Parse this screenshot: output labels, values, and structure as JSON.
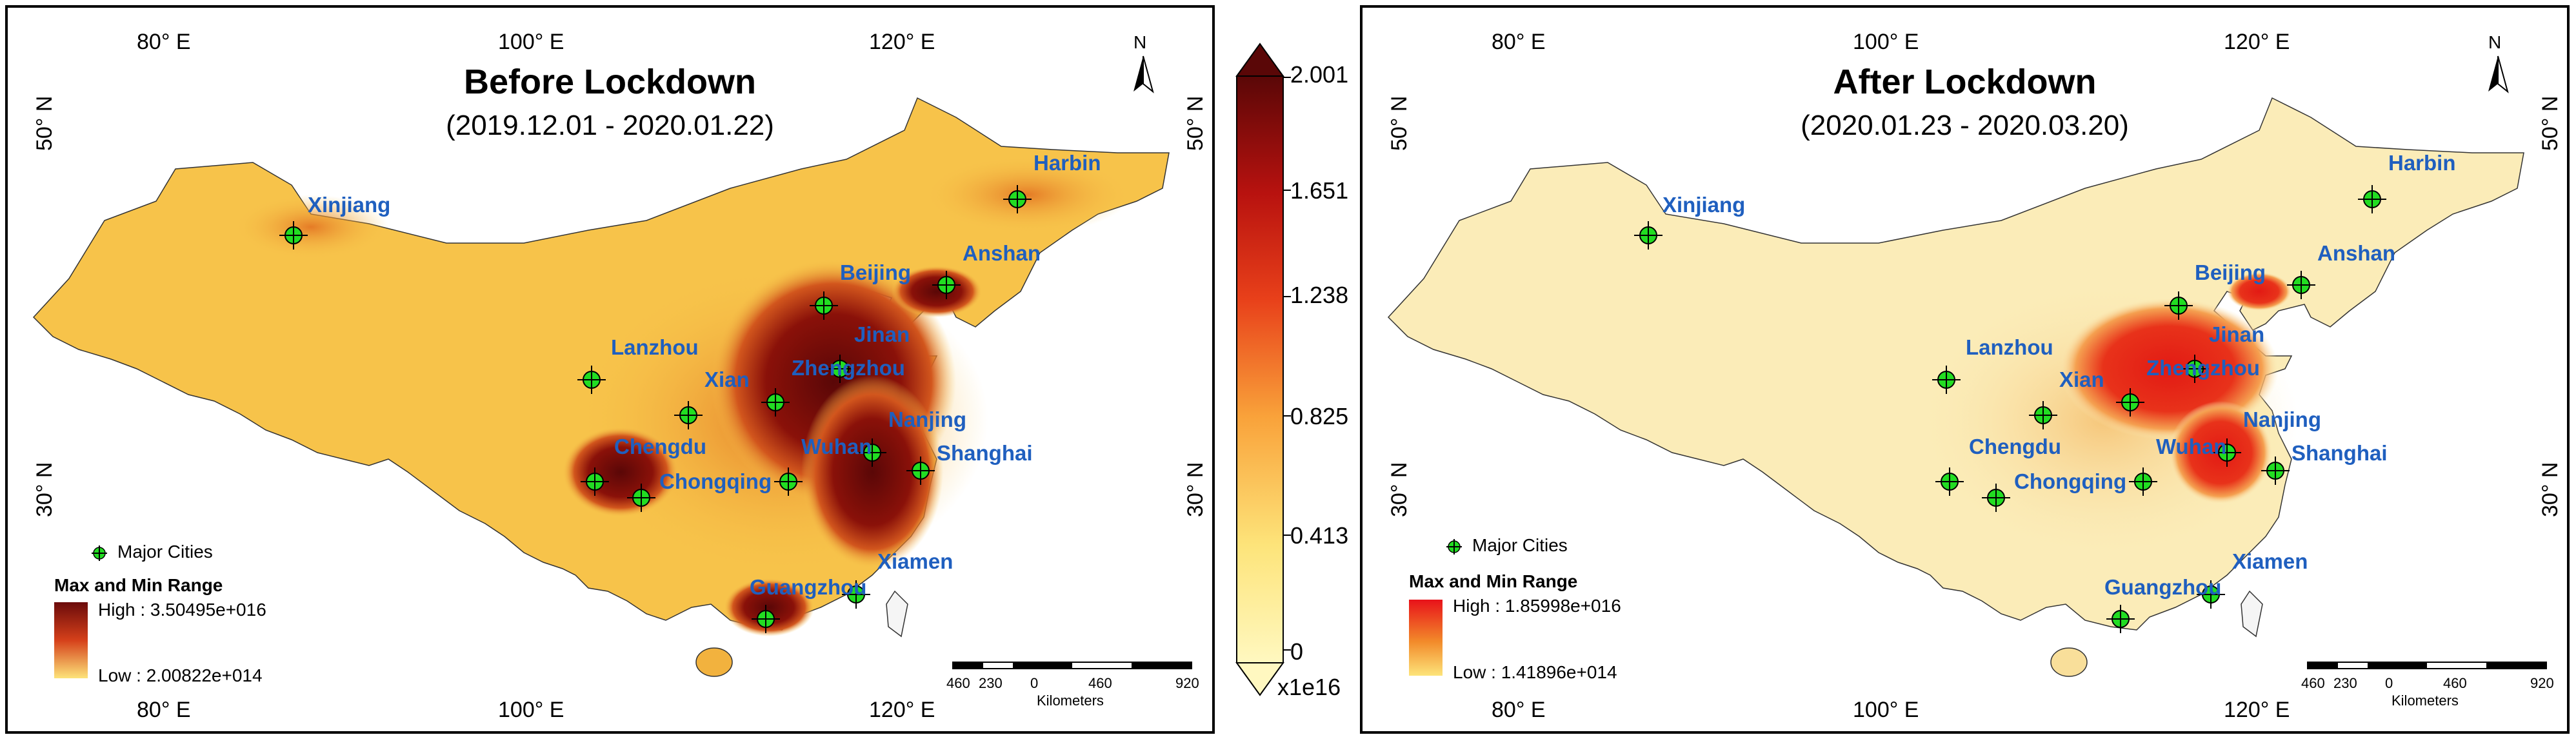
{
  "panels": [
    {
      "id": "before",
      "title": "Before Lockdown",
      "subtitle": "(2019.12.01 - 2020.01.22)",
      "top_lon_labels": [
        "80° E",
        "100° E",
        "120° E"
      ],
      "bottom_lon_labels": [
        "80° E",
        "100° E",
        "120° E"
      ],
      "lat_labels_left": [
        "50° N",
        "30° N"
      ],
      "lat_labels_right": [
        "50° N",
        "30° N"
      ],
      "north_label": "N",
      "legend": {
        "major_cities": "Major Cities",
        "range_title": "Max and Min Range",
        "high": "High : 3.50495e+016",
        "low": "Low : 2.00822e+014",
        "colors": [
          "#6b0b0b",
          "#fde47a"
        ]
      },
      "scale": {
        "ticks": [
          "460",
          "230",
          "0",
          "460",
          "920"
        ],
        "unit": "Kilometers"
      },
      "cities": [
        {
          "name": "Harbin"
        },
        {
          "name": "Xinjiang"
        },
        {
          "name": "Beijing"
        },
        {
          "name": "Anshan"
        },
        {
          "name": "Jinan"
        },
        {
          "name": "Lanzhou"
        },
        {
          "name": "Zhengzhou"
        },
        {
          "name": "Xian"
        },
        {
          "name": "Nanjing"
        },
        {
          "name": "Chengdu"
        },
        {
          "name": "Wuhan"
        },
        {
          "name": "Shanghai"
        },
        {
          "name": "Chongqing"
        },
        {
          "name": "Xiamen"
        },
        {
          "name": "Guangzhou"
        }
      ]
    },
    {
      "id": "after",
      "title": "After Lockdown",
      "subtitle": "(2020.01.23 - 2020.03.20)",
      "top_lon_labels": [
        "80° E",
        "100° E",
        "120° E"
      ],
      "bottom_lon_labels": [
        "80° E",
        "100° E",
        "120° E"
      ],
      "lat_labels_left": [
        "50° N",
        "30° N"
      ],
      "lat_labels_right": [
        "50° N",
        "30° N"
      ],
      "north_label": "N",
      "legend": {
        "major_cities": "Major Cities",
        "range_title": "Max and Min Range",
        "high": "High : 1.85998e+016",
        "low": "Low : 1.41896e+014",
        "colors": [
          "#e8121a",
          "#fde47a"
        ]
      },
      "scale": {
        "ticks": [
          "460",
          "230",
          "0",
          "460",
          "920"
        ],
        "unit": "Kilometers"
      },
      "cities": [
        {
          "name": "Harbin"
        },
        {
          "name": "Xinjiang"
        },
        {
          "name": "Beijing"
        },
        {
          "name": "Anshan"
        },
        {
          "name": "Jinan"
        },
        {
          "name": "Lanzhou"
        },
        {
          "name": "Zhengzhou"
        },
        {
          "name": "Xian"
        },
        {
          "name": "Nanjing"
        },
        {
          "name": "Chengdu"
        },
        {
          "name": "Wuhan"
        },
        {
          "name": "Shanghai"
        },
        {
          "name": "Chongqing"
        },
        {
          "name": "Xiamen"
        },
        {
          "name": "Guangzhou"
        }
      ]
    }
  ],
  "colorbar": {
    "ticks": [
      "2.001",
      "1.651",
      "1.238",
      "0.825",
      "0.413",
      "0"
    ],
    "unit": "x1e16",
    "colors": [
      "#fff8c0",
      "#fde47a",
      "#f9a23a",
      "#e8401a",
      "#b8120f",
      "#5a0707"
    ],
    "arrow_top": "#5a0707",
    "arrow_bottom": "#fff8c0"
  },
  "colors": {
    "china_before_base": "#f7c34a",
    "china_after_base": "#fbecb8",
    "hotspot_before": "#7a0b0b",
    "hotspot_after": "#e21a14",
    "city_marker": "#22dd22",
    "city_label": "#1f5fbf"
  }
}
